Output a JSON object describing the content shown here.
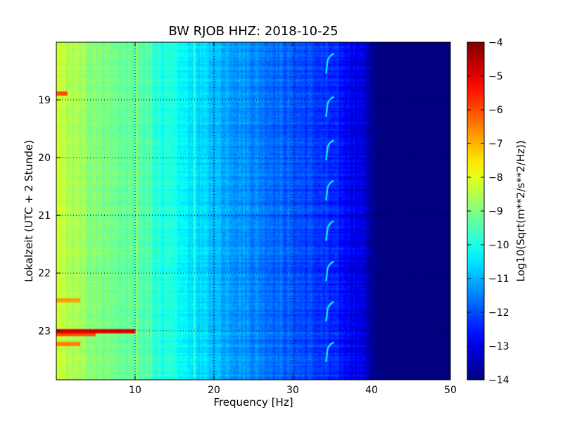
{
  "chart_data": {
    "type": "heatmap",
    "title": "BW RJOB HHZ: 2018-10-25",
    "xlabel": "Frequency [Hz]",
    "ylabel": "Lokalzeit (UTC + 2 Stunde)",
    "xlim": [
      0,
      50
    ],
    "ylim": [
      18.0,
      23.85
    ],
    "y_inverted": true,
    "grid": true,
    "x_ticks": [
      10,
      20,
      30,
      40,
      50
    ],
    "x_tick_labels": [
      "10",
      "20",
      "30",
      "40",
      "50"
    ],
    "y_ticks": [
      19,
      20,
      21,
      22,
      23
    ],
    "y_tick_labels": [
      "19",
      "20",
      "21",
      "22",
      "23"
    ],
    "colorbar": {
      "label": "Log10(Sqrt(m**2/s**2/Hz))",
      "range": [
        -14,
        -4
      ],
      "ticks": [
        -4,
        -5,
        -6,
        -7,
        -8,
        -9,
        -10,
        -11,
        -12,
        -13,
        -14
      ],
      "tick_labels": [
        "−4",
        "−5",
        "−6",
        "−7",
        "−8",
        "−9",
        "−10",
        "−11",
        "−12",
        "−13",
        "−14"
      ],
      "colormap": "jet"
    },
    "spectral_profile": {
      "frequency_hz": [
        0,
        1,
        2,
        3,
        5,
        8,
        10,
        12,
        14,
        16,
        18,
        20,
        22,
        25,
        28,
        30,
        32,
        34,
        36,
        38,
        39,
        40,
        41,
        45,
        50
      ],
      "level": [
        -8.3,
        -8.5,
        -8.6,
        -8.7,
        -8.9,
        -9.2,
        -9.4,
        -9.7,
        -10.0,
        -10.3,
        -10.6,
        -10.9,
        -11.1,
        -11.4,
        -11.7,
        -11.9,
        -12.1,
        -12.3,
        -12.6,
        -12.9,
        -13.1,
        -13.7,
        -14,
        -14,
        -14
      ]
    },
    "hot_bands": [
      {
        "time": 18.88,
        "f_max_hz": 1.5,
        "level": -6.0
      },
      {
        "time": 22.47,
        "f_max_hz": 3,
        "level": -6.8
      },
      {
        "time": 23.0,
        "f_max_hz": 10,
        "level": -5.0
      },
      {
        "time": 23.05,
        "f_max_hz": 5,
        "level": -6.0
      },
      {
        "time": 23.22,
        "f_max_hz": 3,
        "level": -6.5
      }
    ],
    "vertical_lines_hz": [
      1.2,
      10.2,
      11.5,
      12.0,
      17.5
    ],
    "hook_features": {
      "frequency_hz": 34.5,
      "times": [
        18.2,
        18.95,
        19.7,
        20.4,
        21.1,
        21.8,
        22.5,
        23.2
      ],
      "level": -10.5
    }
  }
}
